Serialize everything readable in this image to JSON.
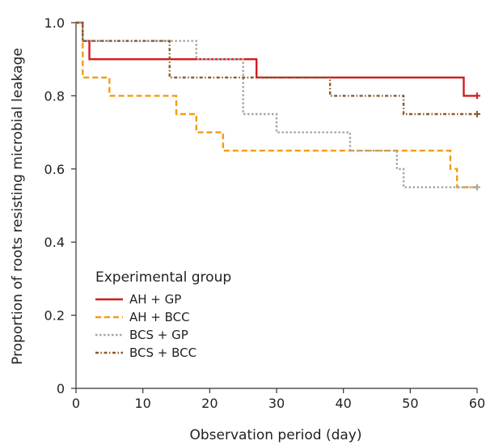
{
  "chart_data": {
    "type": "line",
    "step": true,
    "xlabel": "Observation period (day)",
    "ylabel": "Proportion of roots resisting microbial leakage",
    "xlim": [
      0,
      60
    ],
    "ylim": [
      0,
      1.0
    ],
    "x_ticks": [
      0,
      10,
      20,
      30,
      40,
      50,
      60
    ],
    "x_tick_labels": [
      "0",
      "10",
      "20",
      "30",
      "40",
      "50",
      "60"
    ],
    "y_ticks": [
      0,
      0.2,
      0.4,
      0.6,
      0.8,
      1.0
    ],
    "y_tick_labels": [
      "0",
      "0.2",
      "0.4",
      "0.6",
      "0.8",
      "1.0"
    ],
    "grid": false,
    "legend": {
      "title": "Experimental group",
      "placement": "bottom-left"
    },
    "series": [
      {
        "name": "AH + GP",
        "color": "#d7191c",
        "style": "solid",
        "censored_at": 60,
        "x": [
          0,
          1,
          2,
          27,
          58,
          60
        ],
        "y": [
          1.0,
          0.95,
          0.9,
          0.85,
          0.8,
          0.8
        ]
      },
      {
        "name": "AH + BCC",
        "color": "#f39c12",
        "style": "dashed",
        "censored_at": null,
        "x": [
          0,
          1,
          5,
          15,
          18,
          22,
          56,
          57,
          60
        ],
        "y": [
          1.0,
          0.85,
          0.8,
          0.75,
          0.7,
          0.65,
          0.6,
          0.55,
          0.55
        ]
      },
      {
        "name": "BCS + GP",
        "color": "#a6a6a6",
        "style": "dotted",
        "censored_at": 60,
        "x": [
          0,
          1,
          18,
          25,
          30,
          41,
          48,
          49,
          60
        ],
        "y": [
          1.0,
          0.95,
          0.9,
          0.75,
          0.7,
          0.65,
          0.6,
          0.55,
          0.55
        ]
      },
      {
        "name": "BCS + BCC",
        "color": "#8b5a2b",
        "style": "dashdot",
        "censored_at": 60,
        "x": [
          0,
          1,
          14,
          38,
          49,
          60
        ],
        "y": [
          1.0,
          0.95,
          0.85,
          0.8,
          0.75,
          0.75
        ]
      }
    ]
  }
}
